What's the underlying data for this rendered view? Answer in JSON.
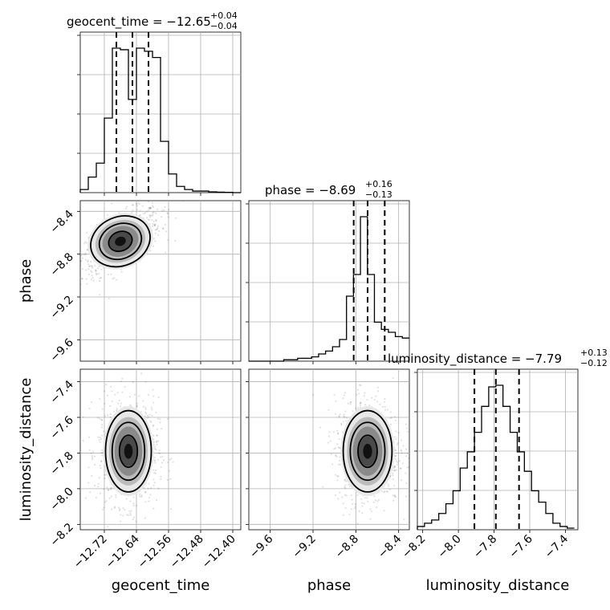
{
  "chart_data": {
    "type": "corner",
    "parameters": [
      "geocent_time",
      "phase",
      "luminosity_distance"
    ],
    "axis_labels": {
      "x": [
        "geocent_time",
        "phase",
        "luminosity_distance"
      ],
      "y": [
        "",
        "phase",
        "luminosity_distance"
      ]
    },
    "titles": [
      {
        "param": "geocent_time",
        "text": "geocent_time = −12.65",
        "upper": "+0.04",
        "lower": "−0.04"
      },
      {
        "param": "phase",
        "text": "phase = −8.69",
        "upper": "+0.16",
        "lower": "−0.13"
      },
      {
        "param": "luminosity_distance",
        "text": "luminosity_distance = −7.79",
        "upper": "+0.13",
        "lower": "−0.12"
      }
    ],
    "ranges": {
      "geocent_time": [
        -12.78,
        -12.38
      ],
      "phase": [
        -9.8,
        -8.3
      ],
      "luminosity_distance": [
        -8.23,
        -7.33
      ]
    },
    "ticks": {
      "geocent_time": [
        -12.72,
        -12.64,
        -12.56,
        -12.48,
        -12.4
      ],
      "phase": [
        -9.6,
        -9.2,
        -8.8,
        -8.4
      ],
      "luminosity_distance": [
        -8.2,
        -8.0,
        -7.8,
        -7.6,
        -7.4
      ]
    },
    "tick_labels": {
      "geocent_time": [
        "−12.72",
        "−12.64",
        "−12.56",
        "−12.48",
        "−12.40"
      ],
      "phase": [
        "−9.6",
        "−9.2",
        "−8.8",
        "−8.4"
      ],
      "luminosity_distance": [
        "−8.2",
        "−8.0",
        "−7.8",
        "−7.6",
        "−7.4"
      ]
    },
    "quantiles": {
      "geocent_time": [
        -12.69,
        -12.65,
        -12.61
      ],
      "phase": [
        -8.82,
        -8.69,
        -8.53
      ],
      "luminosity_distance": [
        -7.91,
        -7.79,
        -7.66
      ]
    },
    "histograms": {
      "geocent_time": {
        "edges_start": -12.78,
        "bin_width": 0.02,
        "counts": [
          2,
          10,
          19,
          48,
          93,
          92,
          60,
          93,
          91,
          87,
          33,
          12,
          4,
          2,
          1,
          1,
          0.5,
          0.3,
          0.2,
          0,
          0
        ]
      },
      "phase": {
        "edges_start": -9.8,
        "bin_width": 0.0652,
        "counts": [
          0,
          0,
          0,
          0,
          0,
          1,
          1,
          2,
          2,
          3,
          5,
          7,
          10,
          15,
          45,
          60,
          100,
          60,
          27,
          22,
          20,
          17,
          16
        ]
      },
      "luminosity_distance": {
        "edges_start": -8.23,
        "bin_width": 0.04,
        "counts": [
          2,
          4,
          6,
          10,
          16,
          24,
          38,
          48,
          60,
          76,
          88,
          89,
          76,
          60,
          48,
          36,
          24,
          17,
          10,
          4,
          2,
          1
        ]
      }
    },
    "scatter_centers": {
      "geocent_time_phase": {
        "x": -12.68,
        "y": -8.68,
        "sx": 0.04,
        "sy": 0.12,
        "corr": 0.6
      },
      "geocent_time_luminosity_distance": {
        "x": -12.66,
        "y": -7.79,
        "sx": 0.03,
        "sy": 0.12,
        "corr": 0
      },
      "phase_luminosity_distance": {
        "x": -8.69,
        "y": -7.79,
        "sx": 0.12,
        "sy": 0.12,
        "corr": 0
      }
    },
    "grid": true
  }
}
